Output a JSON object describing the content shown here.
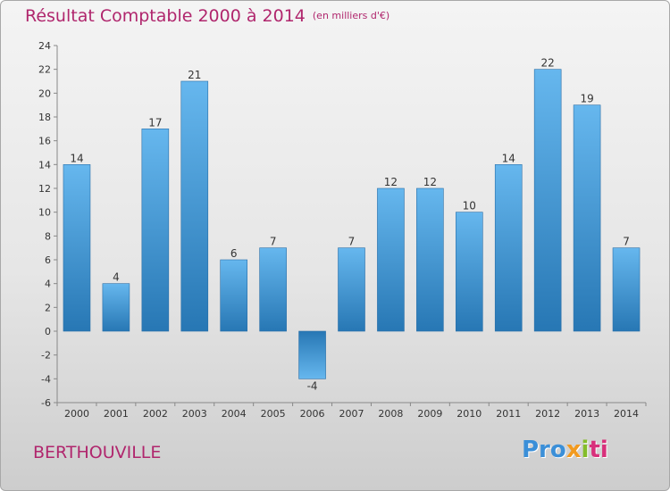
{
  "title": "Résultat Comptable 2000 à 2014",
  "unit": "(en milliers d'€)",
  "commune": "BERTHOUVILLE",
  "logo": {
    "part1": "Pro",
    "part2": "x",
    "part3": "i",
    "part4": "ti"
  },
  "colors": {
    "title": "#b0266d",
    "bar_light": "#66b7ee",
    "bar_dark": "#2777b4"
  },
  "chart_data": {
    "type": "bar",
    "title": "Résultat Comptable 2000 à 2014",
    "ylabel": "(en milliers d'€)",
    "categories": [
      "2000",
      "2001",
      "2002",
      "2003",
      "2004",
      "2005",
      "2006",
      "2007",
      "2008",
      "2009",
      "2010",
      "2011",
      "2012",
      "2013",
      "2014"
    ],
    "values": [
      14,
      4,
      17,
      21,
      6,
      7,
      -4,
      7,
      12,
      12,
      10,
      14,
      22,
      19,
      7
    ],
    "ylim": [
      -6,
      24
    ],
    "yticks": [
      -6,
      -4,
      -2,
      0,
      2,
      4,
      6,
      8,
      10,
      12,
      14,
      16,
      18,
      20,
      22,
      24
    ],
    "grid": false,
    "legend": "none"
  }
}
